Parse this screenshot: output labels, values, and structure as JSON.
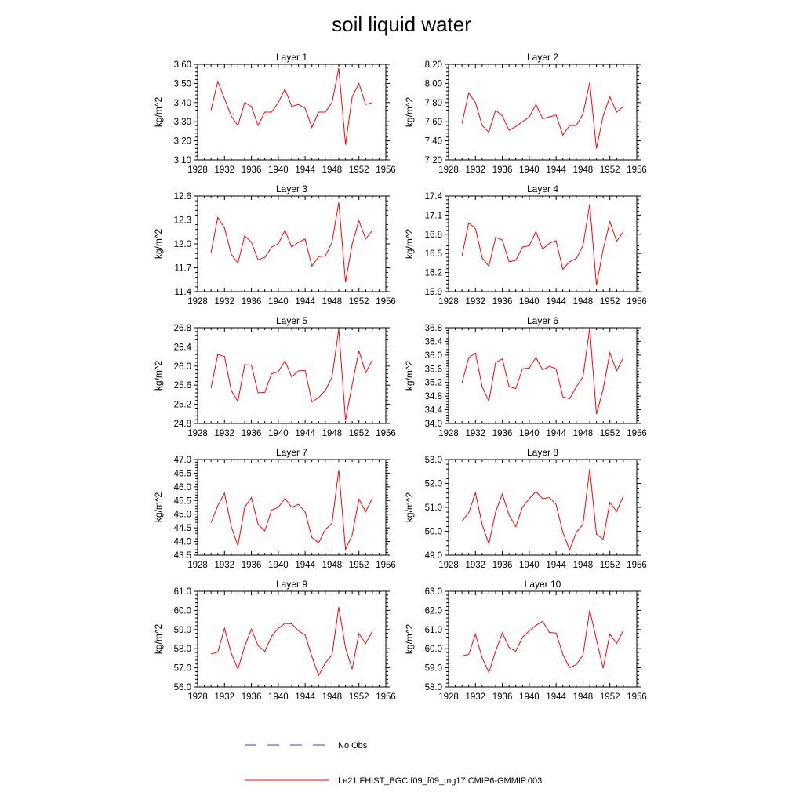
{
  "figure": {
    "title": "soil liquid water",
    "legend": [
      {
        "label": "No Obs",
        "color": "#3b3bd6",
        "style": "dashed"
      },
      {
        "label": "f.e21.FHIST_BGC.f09_f09_mg17.CMIP6-GMMIP.003",
        "color": "#ff0000",
        "style": "solid"
      }
    ]
  },
  "chart_data": [
    {
      "type": "line",
      "title": "Layer 1",
      "xlabel": "",
      "ylabel": "kg/m^2",
      "xlim": [
        1928,
        1956
      ],
      "xticks": [
        "1928",
        "1932",
        "1936",
        "1940",
        "1944",
        "1948",
        "1952",
        "1956"
      ],
      "ylim": [
        3.1,
        3.6
      ],
      "yticks": [
        "3.10",
        "3.20",
        "3.30",
        "3.40",
        "3.50",
        "3.60"
      ],
      "x": [
        1930,
        1931,
        1932,
        1933,
        1934,
        1935,
        1936,
        1937,
        1938,
        1939,
        1940,
        1941,
        1942,
        1943,
        1944,
        1945,
        1946,
        1947,
        1948,
        1949,
        1950,
        1951,
        1952,
        1953,
        1954
      ],
      "series": [
        {
          "name": "f.e21.FHIST_BGC.f09_f09_mg17.CMIP6-GMMIP.003",
          "color": "#ff0000",
          "values": [
            3.36,
            3.51,
            3.42,
            3.33,
            3.28,
            3.4,
            3.38,
            3.28,
            3.35,
            3.35,
            3.4,
            3.47,
            3.38,
            3.39,
            3.37,
            3.27,
            3.35,
            3.35,
            3.4,
            3.58,
            3.18,
            3.43,
            3.5,
            3.39,
            3.4
          ]
        }
      ]
    },
    {
      "type": "line",
      "title": "Layer 2",
      "xlabel": "",
      "ylabel": "kg/m^2",
      "xlim": [
        1928,
        1956
      ],
      "xticks": [
        "1928",
        "1932",
        "1936",
        "1940",
        "1944",
        "1948",
        "1952",
        "1956"
      ],
      "ylim": [
        7.2,
        8.2
      ],
      "yticks": [
        "7.20",
        "7.40",
        "7.60",
        "7.80",
        "8.00",
        "8.20"
      ],
      "x": [
        1930,
        1931,
        1932,
        1933,
        1934,
        1935,
        1936,
        1937,
        1938,
        1939,
        1940,
        1941,
        1942,
        1943,
        1944,
        1945,
        1946,
        1947,
        1948,
        1949,
        1950,
        1951,
        1952,
        1953,
        1954
      ],
      "series": [
        {
          "name": "f.e21.FHIST_BGC.f09_f09_mg17.CMIP6-GMMIP.003",
          "color": "#ff0000",
          "values": [
            7.58,
            7.9,
            7.8,
            7.56,
            7.49,
            7.72,
            7.66,
            7.51,
            7.55,
            7.6,
            7.65,
            7.78,
            7.63,
            7.65,
            7.67,
            7.46,
            7.56,
            7.56,
            7.68,
            8.01,
            7.32,
            7.66,
            7.86,
            7.7,
            7.76
          ]
        }
      ]
    },
    {
      "type": "line",
      "title": "Layer 3",
      "xlabel": "",
      "ylabel": "kg/m^2",
      "xlim": [
        1928,
        1956
      ],
      "xticks": [
        "1928",
        "1932",
        "1936",
        "1940",
        "1944",
        "1948",
        "1952",
        "1956"
      ],
      "ylim": [
        11.4,
        12.6
      ],
      "yticks": [
        "11.4",
        "11.7",
        "12.0",
        "12.3",
        "12.6"
      ],
      "x": [
        1930,
        1931,
        1932,
        1933,
        1934,
        1935,
        1936,
        1937,
        1938,
        1939,
        1940,
        1941,
        1942,
        1943,
        1944,
        1945,
        1946,
        1947,
        1948,
        1949,
        1950,
        1951,
        1952,
        1953,
        1954
      ],
      "series": [
        {
          "name": "f.e21.FHIST_BGC.f09_f09_mg17.CMIP6-GMMIP.003",
          "color": "#ff0000",
          "values": [
            11.89,
            12.33,
            12.2,
            11.87,
            11.76,
            12.1,
            12.02,
            11.8,
            11.83,
            11.96,
            12.0,
            12.17,
            11.96,
            12.02,
            12.06,
            11.72,
            11.84,
            11.85,
            12.02,
            12.52,
            11.52,
            12.0,
            12.29,
            12.06,
            12.17
          ]
        }
      ]
    },
    {
      "type": "line",
      "title": "Layer 4",
      "xlabel": "",
      "ylabel": "kg/m^2",
      "xlim": [
        1928,
        1956
      ],
      "xticks": [
        "1928",
        "1932",
        "1936",
        "1940",
        "1944",
        "1948",
        "1952",
        "1956"
      ],
      "ylim": [
        15.9,
        17.4
      ],
      "yticks": [
        "15.9",
        "16.2",
        "16.5",
        "16.8",
        "17.1",
        "17.4"
      ],
      "x": [
        1930,
        1931,
        1932,
        1933,
        1934,
        1935,
        1936,
        1937,
        1938,
        1939,
        1940,
        1941,
        1942,
        1943,
        1944,
        1945,
        1946,
        1947,
        1948,
        1949,
        1950,
        1951,
        1952,
        1953,
        1954
      ],
      "series": [
        {
          "name": "f.e21.FHIST_BGC.f09_f09_mg17.CMIP6-GMMIP.003",
          "color": "#ff0000",
          "values": [
            16.46,
            16.98,
            16.89,
            16.43,
            16.3,
            16.75,
            16.71,
            16.37,
            16.39,
            16.6,
            16.62,
            16.84,
            16.57,
            16.66,
            16.7,
            16.25,
            16.37,
            16.42,
            16.62,
            17.27,
            16.0,
            16.56,
            17.0,
            16.69,
            16.84
          ]
        }
      ]
    },
    {
      "type": "line",
      "title": "Layer 5",
      "xlabel": "",
      "ylabel": "kg/m^2",
      "xlim": [
        1928,
        1956
      ],
      "xticks": [
        "1928",
        "1932",
        "1936",
        "1940",
        "1944",
        "1948",
        "1952",
        "1956"
      ],
      "ylim": [
        24.8,
        26.8
      ],
      "yticks": [
        "24.8",
        "25.2",
        "25.6",
        "26.0",
        "26.4",
        "26.8"
      ],
      "x": [
        1930,
        1931,
        1932,
        1933,
        1934,
        1935,
        1936,
        1937,
        1938,
        1939,
        1940,
        1941,
        1942,
        1943,
        1944,
        1945,
        1946,
        1947,
        1948,
        1949,
        1950,
        1951,
        1952,
        1953,
        1954
      ],
      "series": [
        {
          "name": "f.e21.FHIST_BGC.f09_f09_mg17.CMIP6-GMMIP.003",
          "color": "#ff0000",
          "values": [
            25.54,
            26.24,
            26.2,
            25.49,
            25.26,
            26.03,
            26.02,
            25.44,
            25.45,
            25.84,
            25.88,
            26.11,
            25.77,
            25.9,
            25.91,
            25.25,
            25.34,
            25.49,
            25.77,
            26.77,
            24.87,
            25.61,
            26.32,
            25.86,
            26.13
          ]
        }
      ]
    },
    {
      "type": "line",
      "title": "Layer 6",
      "xlabel": "",
      "ylabel": "kg/m^2",
      "xlim": [
        1928,
        1956
      ],
      "xticks": [
        "1928",
        "1932",
        "1936",
        "1940",
        "1944",
        "1948",
        "1952",
        "1956"
      ],
      "ylim": [
        34.0,
        36.8
      ],
      "yticks": [
        "34.0",
        "34.4",
        "34.8",
        "35.2",
        "35.6",
        "36.0",
        "36.4",
        "36.8"
      ],
      "x": [
        1930,
        1931,
        1932,
        1933,
        1934,
        1935,
        1936,
        1937,
        1938,
        1939,
        1940,
        1941,
        1942,
        1943,
        1944,
        1945,
        1946,
        1947,
        1948,
        1949,
        1950,
        1951,
        1952,
        1953,
        1954
      ],
      "series": [
        {
          "name": "f.e21.FHIST_BGC.f09_f09_mg17.CMIP6-GMMIP.003",
          "color": "#ff0000",
          "values": [
            35.19,
            35.92,
            36.06,
            35.07,
            34.65,
            35.78,
            35.89,
            35.08,
            35.02,
            35.6,
            35.62,
            35.93,
            35.57,
            35.67,
            35.6,
            34.78,
            34.72,
            35.07,
            35.36,
            36.79,
            34.27,
            35.0,
            36.07,
            35.54,
            35.92
          ]
        }
      ]
    },
    {
      "type": "line",
      "title": "Layer 7",
      "xlabel": "",
      "ylabel": "kg/m^2",
      "xlim": [
        1928,
        1956
      ],
      "xticks": [
        "1928",
        "1932",
        "1936",
        "1940",
        "1944",
        "1948",
        "1952",
        "1956"
      ],
      "ylim": [
        43.5,
        47.0
      ],
      "yticks": [
        "43.5",
        "44.0",
        "44.5",
        "45.0",
        "45.5",
        "46.0",
        "46.5",
        "47.0"
      ],
      "x": [
        1930,
        1931,
        1932,
        1933,
        1934,
        1935,
        1936,
        1937,
        1938,
        1939,
        1940,
        1941,
        1942,
        1943,
        1944,
        1945,
        1946,
        1947,
        1948,
        1949,
        1950,
        1951,
        1952,
        1953,
        1954
      ],
      "series": [
        {
          "name": "f.e21.FHIST_BGC.f09_f09_mg17.CMIP6-GMMIP.003",
          "color": "#ff0000",
          "values": [
            44.69,
            45.31,
            45.77,
            44.55,
            43.85,
            45.25,
            45.61,
            44.63,
            44.39,
            45.15,
            45.25,
            45.58,
            45.25,
            45.36,
            45.08,
            44.15,
            43.95,
            44.44,
            44.67,
            46.62,
            43.71,
            44.24,
            45.55,
            45.09,
            45.59
          ]
        }
      ]
    },
    {
      "type": "line",
      "title": "Layer 8",
      "xlabel": "",
      "ylabel": "kg/m^2",
      "xlim": [
        1928,
        1956
      ],
      "xticks": [
        "1928",
        "1932",
        "1936",
        "1940",
        "1944",
        "1948",
        "1952",
        "1956"
      ],
      "ylim": [
        49.0,
        53.0
      ],
      "yticks": [
        "49.0",
        "50.0",
        "51.0",
        "52.0",
        "53.0"
      ],
      "x": [
        1930,
        1931,
        1932,
        1933,
        1934,
        1935,
        1936,
        1937,
        1938,
        1939,
        1940,
        1941,
        1942,
        1943,
        1944,
        1945,
        1946,
        1947,
        1948,
        1949,
        1950,
        1951,
        1952,
        1953,
        1954
      ],
      "series": [
        {
          "name": "f.e21.FHIST_BGC.f09_f09_mg17.CMIP6-GMMIP.003",
          "color": "#ff0000",
          "values": [
            50.42,
            50.77,
            51.61,
            50.28,
            49.47,
            50.81,
            51.56,
            50.68,
            50.19,
            51.01,
            51.36,
            51.66,
            51.36,
            51.41,
            51.12,
            49.96,
            49.22,
            49.95,
            50.29,
            52.61,
            49.88,
            49.67,
            51.21,
            50.83,
            51.47
          ]
        }
      ]
    },
    {
      "type": "line",
      "title": "Layer 9",
      "xlabel": "",
      "ylabel": "kg/m^2",
      "xlim": [
        1928,
        1956
      ],
      "xticks": [
        "1928",
        "1932",
        "1936",
        "1940",
        "1944",
        "1948",
        "1952",
        "1956"
      ],
      "ylim": [
        56.0,
        61.0
      ],
      "yticks": [
        "56.0",
        "57.0",
        "58.0",
        "59.0",
        "60.0",
        "61.0"
      ],
      "x": [
        1930,
        1931,
        1932,
        1933,
        1934,
        1935,
        1936,
        1937,
        1938,
        1939,
        1940,
        1941,
        1942,
        1943,
        1944,
        1945,
        1946,
        1947,
        1948,
        1949,
        1950,
        1951,
        1952,
        1953,
        1954
      ],
      "series": [
        {
          "name": "f.e21.FHIST_BGC.f09_f09_mg17.CMIP6-GMMIP.003",
          "color": "#ff0000",
          "values": [
            57.72,
            57.82,
            59.06,
            57.77,
            56.93,
            58.12,
            59.03,
            58.16,
            57.86,
            58.65,
            59.06,
            59.32,
            59.3,
            58.93,
            58.72,
            57.59,
            56.6,
            57.26,
            57.67,
            60.18,
            58.05,
            56.93,
            58.79,
            58.27,
            58.91
          ]
        }
      ]
    },
    {
      "type": "line",
      "title": "Layer 10",
      "xlabel": "",
      "ylabel": "kg/m^2",
      "xlim": [
        1928,
        1956
      ],
      "xticks": [
        "1928",
        "1932",
        "1936",
        "1940",
        "1944",
        "1948",
        "1952",
        "1956"
      ],
      "ylim": [
        58.0,
        63.0
      ],
      "yticks": [
        "58.0",
        "59.0",
        "60.0",
        "61.0",
        "62.0",
        "63.0"
      ],
      "x": [
        1930,
        1931,
        1932,
        1933,
        1934,
        1935,
        1936,
        1937,
        1938,
        1939,
        1940,
        1941,
        1942,
        1943,
        1944,
        1945,
        1946,
        1947,
        1948,
        1949,
        1950,
        1951,
        1952,
        1953,
        1954
      ],
      "series": [
        {
          "name": "f.e21.FHIST_BGC.f09_f09_mg17.CMIP6-GMMIP.003",
          "color": "#ff0000",
          "values": [
            59.62,
            59.7,
            60.76,
            59.51,
            58.76,
            59.87,
            60.83,
            60.07,
            59.86,
            60.6,
            60.93,
            61.22,
            61.43,
            60.85,
            60.82,
            59.7,
            59.0,
            59.17,
            59.65,
            62.01,
            60.47,
            58.97,
            60.77,
            60.27,
            60.95
          ]
        }
      ]
    }
  ]
}
